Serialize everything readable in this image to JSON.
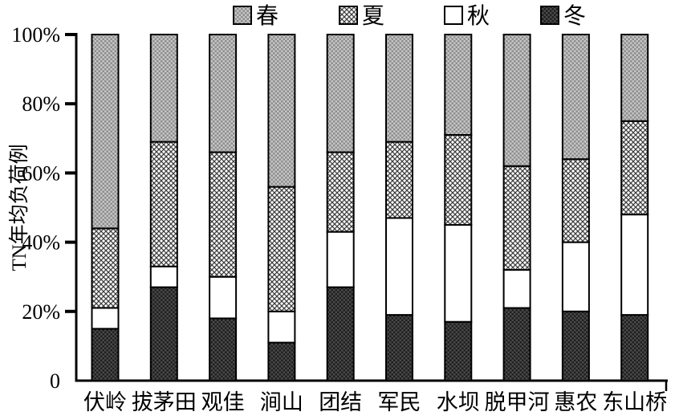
{
  "figure": {
    "background": "#ffffff"
  },
  "colors": {
    "axis": "#000000",
    "text": "#000000",
    "bar_border": "#000000",
    "spring_base": "#c6c6c6",
    "spring_dot": "#8e8e8e",
    "summer_bg": "#ffffff",
    "summer_line": "#3f3f3f",
    "autumn_fill": "#ffffff",
    "winter_base": "#1f1f1f",
    "winter_dot": "#4a4a4a"
  },
  "chart_data": {
    "type": "bar",
    "stacked": true,
    "stack_unit": "percent",
    "title": "",
    "xlabel": "",
    "ylabel": "TN年均负荷例",
    "ylim": [
      0,
      100
    ],
    "grid": false,
    "legend_position": "top",
    "legend": [
      "春",
      "夏",
      "秋",
      "冬"
    ],
    "legend_keys": [
      "spring",
      "summer",
      "autumn",
      "winter"
    ],
    "categories": [
      "伏岭",
      "拔茅田",
      "观佳",
      "涧山",
      "团结",
      "军民",
      "水坝",
      "脱甲河",
      "惠农",
      "东山桥"
    ],
    "series": [
      {
        "name": "冬",
        "key": "winter",
        "values": [
          15,
          27,
          18,
          11,
          27,
          19,
          17,
          21,
          20,
          19
        ]
      },
      {
        "name": "秋",
        "key": "autumn",
        "values": [
          6,
          6,
          12,
          9,
          16,
          28,
          28,
          11,
          20,
          29
        ]
      },
      {
        "name": "夏",
        "key": "summer",
        "values": [
          23,
          36,
          36,
          36,
          23,
          22,
          26,
          30,
          24,
          27
        ]
      },
      {
        "name": "春",
        "key": "spring",
        "values": [
          56,
          31,
          34,
          44,
          34,
          31,
          29,
          38,
          36,
          25
        ]
      }
    ],
    "yticks": [
      {
        "label": "100%",
        "value": 100
      },
      {
        "label": "80%",
        "value": 80
      },
      {
        "label": "60%",
        "value": 60
      },
      {
        "label": "40%",
        "value": 40
      },
      {
        "label": "20%",
        "value": 20
      },
      {
        "label": "0",
        "value": 0
      }
    ]
  }
}
